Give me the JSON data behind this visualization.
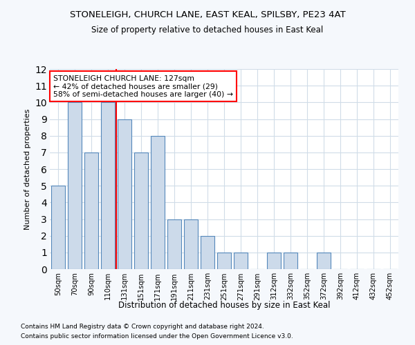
{
  "title1": "STONELEIGH, CHURCH LANE, EAST KEAL, SPILSBY, PE23 4AT",
  "title2": "Size of property relative to detached houses in East Keal",
  "xlabel": "Distribution of detached houses by size in East Keal",
  "ylabel": "Number of detached properties",
  "categories": [
    "50sqm",
    "70sqm",
    "90sqm",
    "110sqm",
    "131sqm",
    "151sqm",
    "171sqm",
    "191sqm",
    "211sqm",
    "231sqm",
    "251sqm",
    "271sqm",
    "291sqm",
    "312sqm",
    "332sqm",
    "352sqm",
    "372sqm",
    "392sqm",
    "412sqm",
    "432sqm",
    "452sqm"
  ],
  "values": [
    5,
    10,
    7,
    10,
    9,
    7,
    8,
    3,
    3,
    2,
    1,
    1,
    0,
    1,
    1,
    0,
    1,
    0,
    0,
    0,
    0
  ],
  "bar_color": "#ccdaea",
  "bar_edge_color": "#5588bb",
  "red_line_index": 4,
  "annotation_title": "STONELEIGH CHURCH LANE: 127sqm",
  "annotation_line1": "← 42% of detached houses are smaller (29)",
  "annotation_line2": "58% of semi-detached houses are larger (40) →",
  "ylim": [
    0,
    12
  ],
  "yticks": [
    0,
    1,
    2,
    3,
    4,
    5,
    6,
    7,
    8,
    9,
    10,
    11,
    12
  ],
  "footer1": "Contains HM Land Registry data © Crown copyright and database right 2024.",
  "footer2": "Contains public sector information licensed under the Open Government Licence v3.0.",
  "plot_bg_color": "#ffffff",
  "fig_bg_color": "#f5f8fc",
  "grid_color": "#d0dce8"
}
